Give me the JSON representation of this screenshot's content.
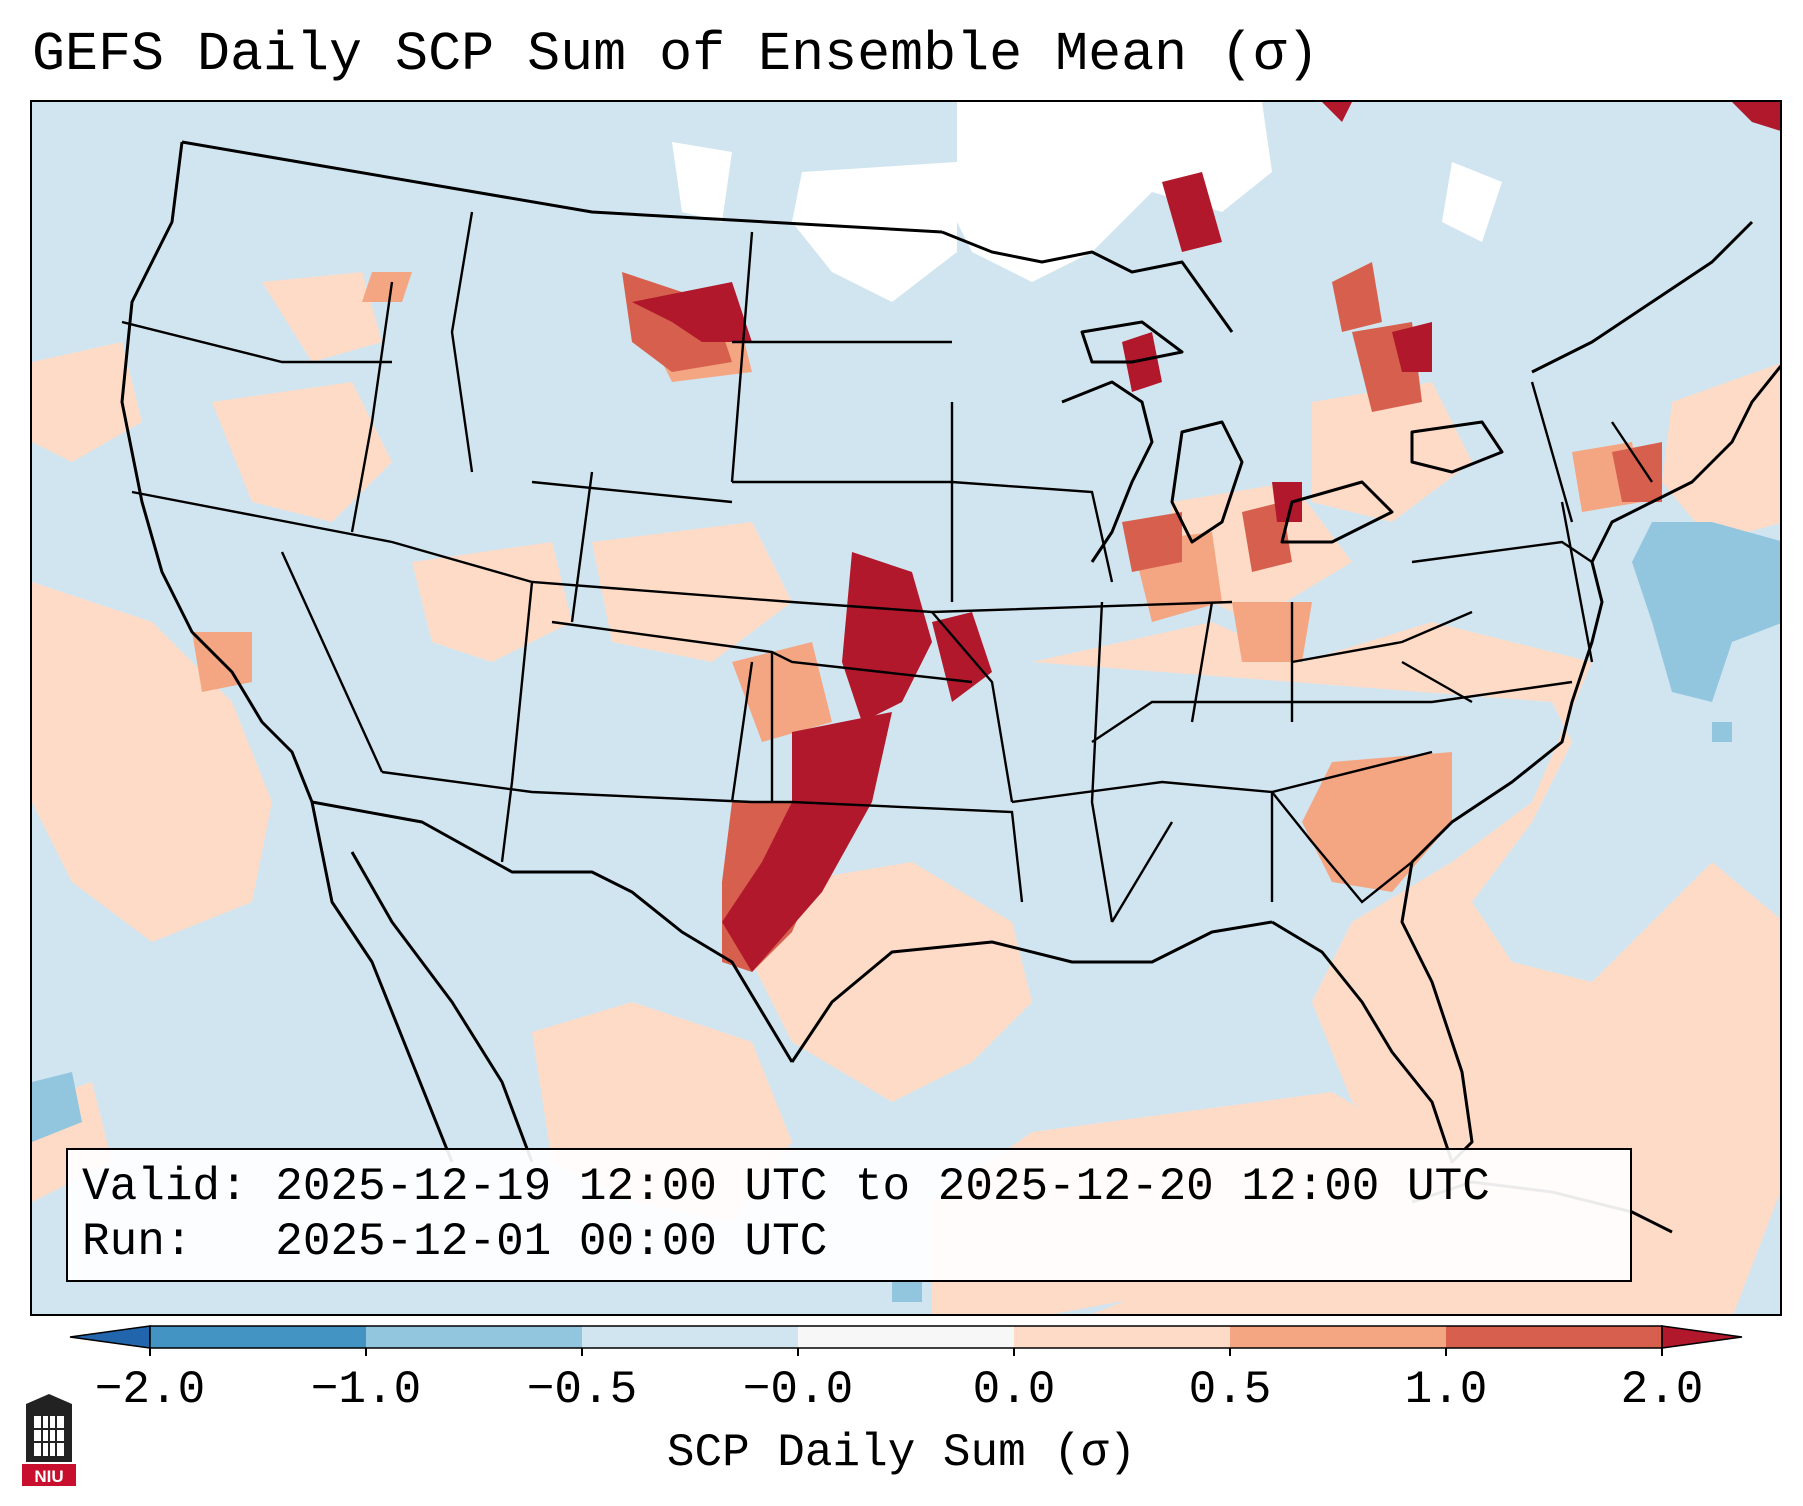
{
  "title": "GEFS Daily SCP Sum of Ensemble Mean (σ)",
  "info": {
    "valid_line": "Valid: 2025-12-19 12:00 UTC to 2025-12-20 12:00 UTC",
    "run_line": "Run:   2025-12-01 00:00 UTC"
  },
  "colorbar": {
    "label": "SCP Daily Sum (σ)",
    "ticks": [
      "−2.0",
      "−1.0",
      "−0.5",
      "−0.0",
      "0.0",
      "0.5",
      "1.0",
      "2.0"
    ],
    "bins": [
      {
        "range": "< -2.0",
        "color": "#2166ac"
      },
      {
        "range": "-2.0 to -1.0",
        "color": "#4393c3"
      },
      {
        "range": "-1.0 to -0.5",
        "color": "#92c5de"
      },
      {
        "range": "-0.5 to -0.0",
        "color": "#d1e5f0"
      },
      {
        "range": "-0.0 to 0.0",
        "color": "#f7f7f7"
      },
      {
        "range": "0.0 to 0.5",
        "color": "#fddbc7"
      },
      {
        "range": "0.5 to 1.0",
        "color": "#f4a582"
      },
      {
        "range": "1.0 to 2.0",
        "color": "#d6604d"
      },
      {
        "range": "> 2.0",
        "color": "#b2182b"
      }
    ]
  },
  "map": {
    "region": "Contiguous United States",
    "features": [
      {
        "name": "Southern Plains (OK/TX)",
        "level": "> 2.0"
      },
      {
        "name": "Eastern Kansas / Missouri",
        "level": "> 2.0"
      },
      {
        "name": "Montana / Wyoming border",
        "level": "1.0 to 2.0"
      },
      {
        "name": "Great Lakes / Ohio Valley",
        "level": "1.0 to 2.0"
      },
      {
        "name": "Southeast (GA/SC)",
        "level": "0.5 to 1.0"
      },
      {
        "name": "Western Atlantic",
        "level": "-1.0 to -0.5"
      }
    ]
  },
  "logo_text": "NIU"
}
